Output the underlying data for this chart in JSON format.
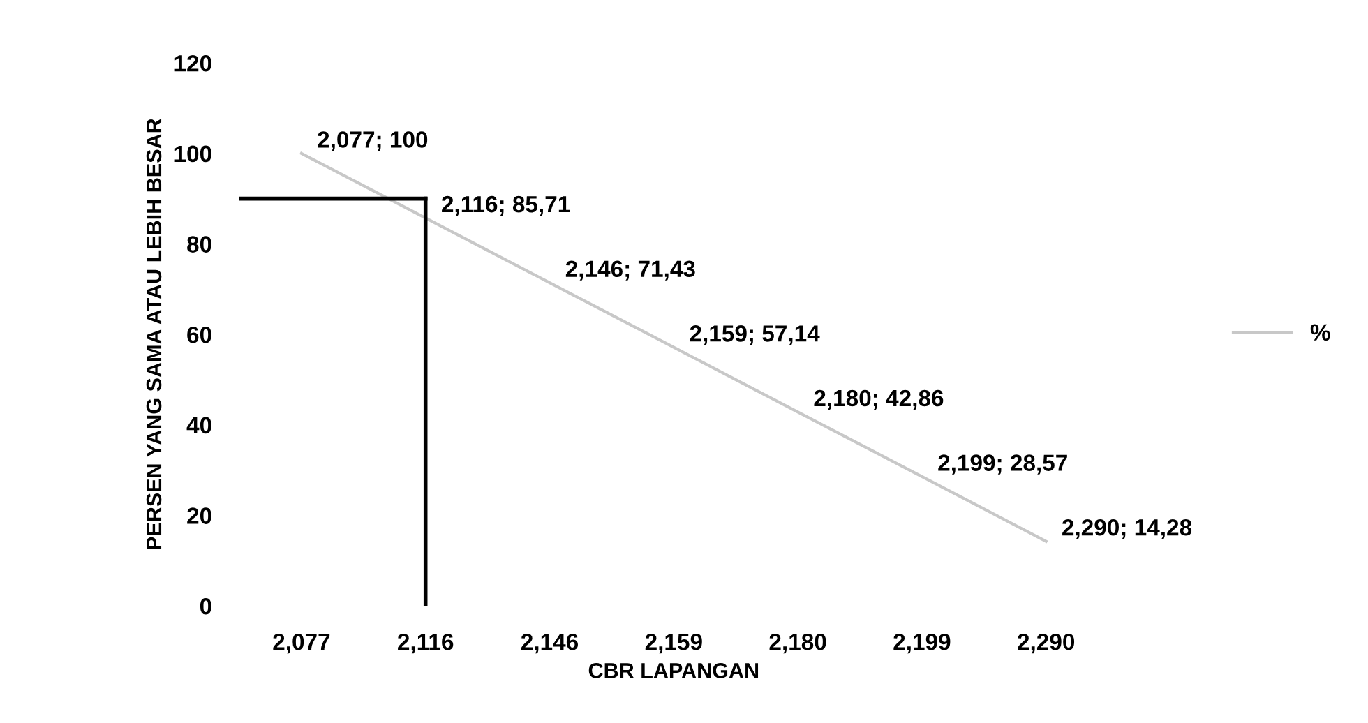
{
  "chart_data": {
    "type": "line",
    "xlabel": "CBR LAPANGAN",
    "ylabel": "PERSEN YANG SAMA ATAU LEBIH BESAR",
    "categories": [
      "2,077",
      "2,116",
      "2,146",
      "2,159",
      "2,180",
      "2,199",
      "2,290"
    ],
    "series": [
      {
        "name": "%",
        "color": "#c8c8c8",
        "values": [
          100,
          85.71,
          71.43,
          57.14,
          42.86,
          28.57,
          14.28
        ],
        "value_labels": [
          "2,077; 100",
          "2,116; 85,71",
          "2,146; 71,43",
          "2,159; 57,14",
          "2,180; 42,86",
          "2,199; 28,57",
          "2,290; 14,28"
        ]
      }
    ],
    "ylim": [
      0,
      120
    ],
    "yticks": [
      0,
      20,
      40,
      60,
      80,
      100,
      120
    ],
    "grid": false,
    "legend": "right",
    "marker": "none",
    "line_style": "solid",
    "ref_lines": [
      {
        "axis": "y",
        "value": 90,
        "color": "#000000"
      },
      {
        "axis": "x",
        "value": "2,116",
        "color": "#000000"
      }
    ]
  }
}
